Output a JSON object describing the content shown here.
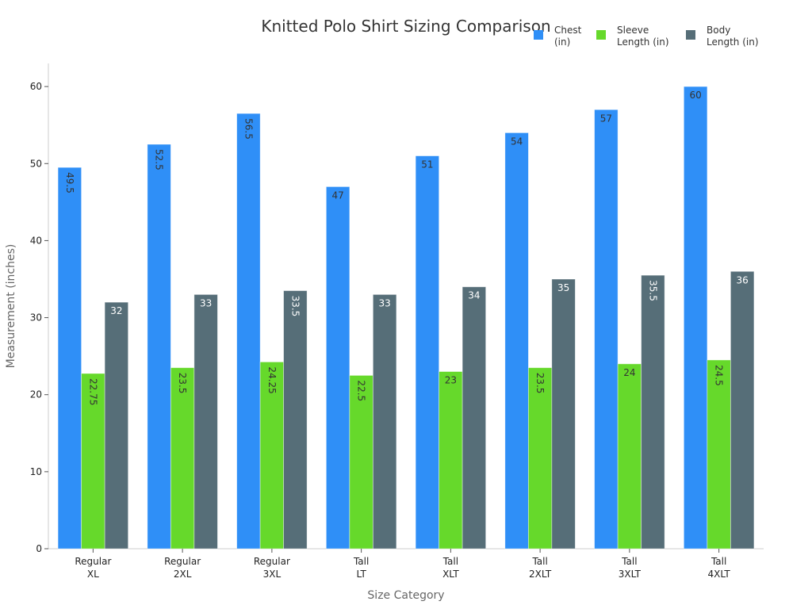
{
  "chart_data": {
    "type": "bar",
    "title": "Knitted Polo Shirt Sizing Comparison",
    "xlabel": "Size Category",
    "ylabel": "Measurement (inches)",
    "ylim": [
      0,
      63
    ],
    "yticks": [
      0,
      10,
      20,
      30,
      40,
      50,
      60
    ],
    "legend_position": "top-right",
    "categories": [
      [
        "Regular",
        "XL"
      ],
      [
        "Regular",
        "2XL"
      ],
      [
        "Regular",
        "3XL"
      ],
      [
        "Tall",
        "LT"
      ],
      [
        "Tall",
        "XLT"
      ],
      [
        "Tall",
        "2XLT"
      ],
      [
        "Tall",
        "3XLT"
      ],
      [
        "Tall",
        "4XLT"
      ]
    ],
    "series": [
      {
        "name": [
          "Chest",
          "(in)"
        ],
        "color": "#2F8FF7",
        "label_color": "#333333",
        "values": [
          49.5,
          52.5,
          56.5,
          47,
          51,
          54,
          57,
          60
        ],
        "labels": [
          "49.5",
          "52.5",
          "56.5",
          "47",
          "51",
          "54",
          "57",
          "60"
        ]
      },
      {
        "name": [
          "Sleeve",
          "Length (in)"
        ],
        "color": "#66D92B",
        "label_color": "#333333",
        "values": [
          22.75,
          23.5,
          24.25,
          22.5,
          23,
          23.5,
          24,
          24.5
        ],
        "labels": [
          "22.75",
          "23.5",
          "24.25",
          "22.5",
          "23",
          "23.5",
          "24",
          "24.5"
        ]
      },
      {
        "name": [
          "Body",
          "Length (in)"
        ],
        "color": "#566E78",
        "label_color": "#ffffff",
        "values": [
          32,
          33,
          33.5,
          33,
          34,
          35,
          35.5,
          36
        ],
        "labels": [
          "32",
          "33",
          "33.5",
          "33",
          "34",
          "35",
          "35.5",
          "36"
        ]
      }
    ]
  }
}
